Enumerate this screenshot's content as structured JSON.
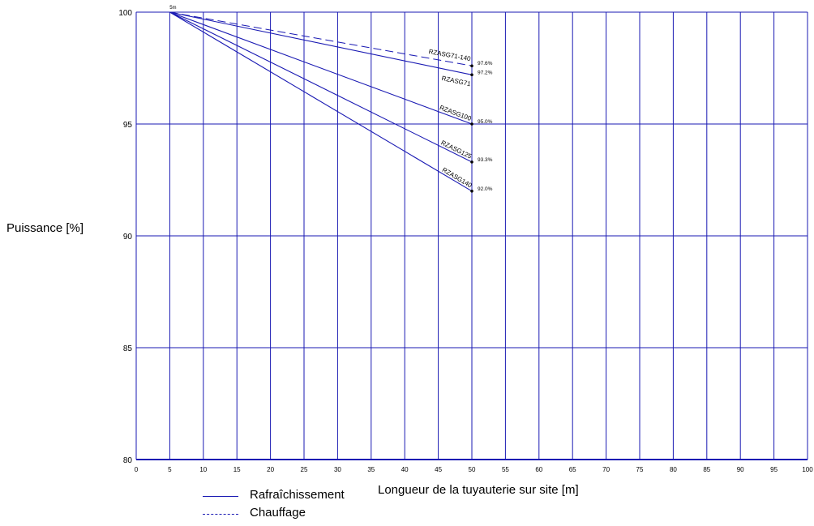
{
  "chart_data": {
    "type": "line",
    "xlabel": "Longueur de la tuyauterie sur site [m]",
    "ylabel": "Puissance [%]",
    "xlim": [
      0,
      100
    ],
    "ylim": [
      80,
      100
    ],
    "xticks": [
      0,
      5,
      10,
      15,
      20,
      25,
      30,
      35,
      40,
      45,
      50,
      55,
      60,
      65,
      70,
      75,
      80,
      85,
      90,
      95,
      100
    ],
    "yticks": [
      80,
      85,
      90,
      95,
      100
    ],
    "grid": true,
    "start_label": "5m",
    "series": [
      {
        "name": "RZASG71-140",
        "style": "dashed",
        "x": [
          5,
          50
        ],
        "y": [
          100,
          97.6
        ],
        "end_label": "97.6%"
      },
      {
        "name": "RZASG71",
        "style": "solid",
        "x": [
          5,
          50
        ],
        "y": [
          100,
          97.2
        ],
        "end_label": "97.2%"
      },
      {
        "name": "RZASG100",
        "style": "solid",
        "x": [
          5,
          50
        ],
        "y": [
          100,
          95.0
        ],
        "end_label": "95.0%"
      },
      {
        "name": "RZASG125",
        "style": "solid",
        "x": [
          5,
          50
        ],
        "y": [
          100,
          93.3
        ],
        "end_label": "93.3%"
      },
      {
        "name": "RZASG140",
        "style": "solid",
        "x": [
          5,
          50
        ],
        "y": [
          100,
          92.0
        ],
        "end_label": "92.0%"
      }
    ],
    "legend": [
      {
        "label": "Rafraîchissement",
        "style": "solid"
      },
      {
        "label": "Chauffage",
        "style": "dashed"
      }
    ],
    "colors": {
      "line": "#1a1ab3",
      "grid": "#1a1ab3"
    }
  }
}
